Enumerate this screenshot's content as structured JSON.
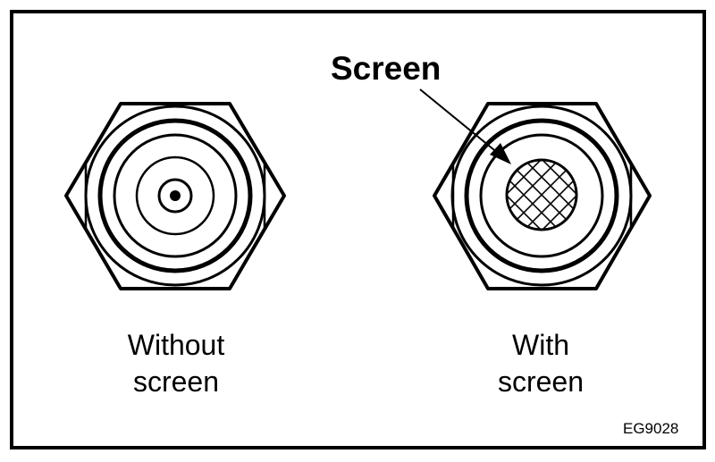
{
  "callout": {
    "label": "Screen"
  },
  "left_fitting": {
    "caption_line1": "Without",
    "caption_line2": "screen"
  },
  "right_fitting": {
    "caption_line1": "With",
    "caption_line2": "screen"
  },
  "figure_code": "EG9028",
  "colors": {
    "line": "#000000",
    "background": "#ffffff"
  }
}
